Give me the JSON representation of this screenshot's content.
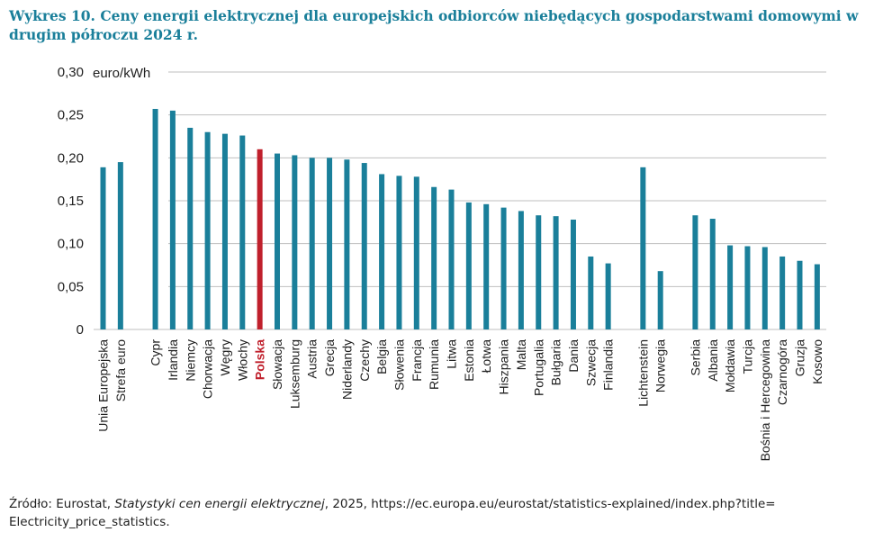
{
  "title": "Wykres 10. Ceny energii elektrycznej dla europejskich odbiorców niebędących gospodarstwami domowymi w drugim półroczu 2024 r.",
  "source": {
    "prefix": "Źródło: Eurostat, ",
    "italic": "Statystyki cen energii elektrycznej",
    "suffix": ", 2025, https://ec.europa.eu/eurostat/statistics-explained/index.php?title= Electricity_price_statistics."
  },
  "colors": {
    "bar": "#1a7f9a",
    "highlight": "#c0202c",
    "grid": "#bfbfbf",
    "title": "#1a7f9a"
  },
  "chart_data": {
    "type": "bar",
    "ylabel": "euro/kWh",
    "ylim": [
      0,
      0.3
    ],
    "yticks": [
      {
        "value": 0,
        "label": "0"
      },
      {
        "value": 0.05,
        "label": "0,05"
      },
      {
        "value": 0.1,
        "label": "0,10"
      },
      {
        "value": 0.15,
        "label": "0,15"
      },
      {
        "value": 0.2,
        "label": "0,20"
      },
      {
        "value": 0.25,
        "label": "0,25"
      },
      {
        "value": 0.3,
        "label": "0,30"
      }
    ],
    "grid": true,
    "highlight": "Polska",
    "groups": [
      {
        "categories": [
          "Unia Europejska",
          "Strefa euro"
        ],
        "values": [
          0.189,
          0.195
        ]
      },
      {
        "categories": [
          "Cypr",
          "Irlandia",
          "Niemcy",
          "Chorwacja",
          "Węgry",
          "Włochy",
          "Polska",
          "Słowacja",
          "Luksemburg",
          "Austria",
          "Grecja",
          "Niderlandy",
          "Czechy",
          "Belgia",
          "Słowenia",
          "Francja",
          "Rumunia",
          "Litwa",
          "Estonia",
          "Łotwa",
          "Hiszpania",
          "Malta",
          "Portugalia",
          "Bułgaria",
          "Dania",
          "Szwecja",
          "Finlandia"
        ],
        "values": [
          0.257,
          0.255,
          0.235,
          0.23,
          0.228,
          0.226,
          0.21,
          0.205,
          0.203,
          0.2,
          0.2,
          0.198,
          0.194,
          0.181,
          0.179,
          0.178,
          0.166,
          0.163,
          0.148,
          0.146,
          0.142,
          0.138,
          0.133,
          0.132,
          0.128,
          0.085,
          0.077
        ]
      },
      {
        "categories": [
          "Lichtenstein",
          "Norwegia"
        ],
        "values": [
          0.189,
          0.068
        ]
      },
      {
        "categories": [
          "Serbia",
          "Albania",
          "Mołdawia",
          "Turcja",
          "Bośnia i Hercegowina",
          "Czarnogóra",
          "Gruzja",
          "Kosowo"
        ],
        "values": [
          0.133,
          0.129,
          0.098,
          0.097,
          0.096,
          0.085,
          0.08,
          0.076
        ]
      }
    ]
  }
}
